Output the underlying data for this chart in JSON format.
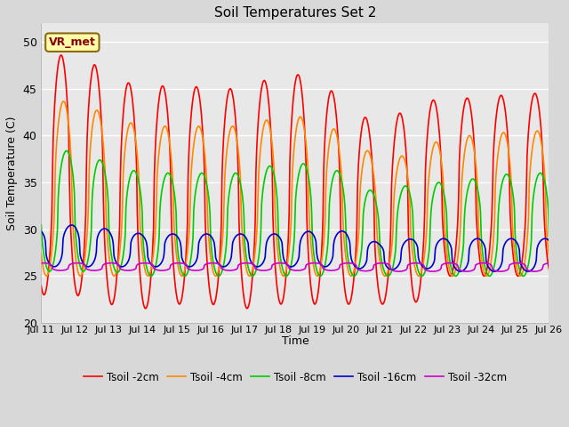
{
  "title": "Soil Temperatures Set 2",
  "xlabel": "Time",
  "ylabel": "Soil Temperature (C)",
  "ylim": [
    20,
    52
  ],
  "yticks": [
    20,
    25,
    30,
    35,
    40,
    45,
    50
  ],
  "xtick_labels": [
    "Jul 11",
    "Jul 12",
    "Jul 13",
    "Jul 14",
    "Jul 15",
    "Jul 16",
    "Jul 17",
    "Jul 18",
    "Jul 19",
    "Jul 20",
    "Jul 21",
    "Jul 22",
    "Jul 23",
    "Jul 24",
    "Jul 25",
    "Jul 26"
  ],
  "outer_bg": "#d8d8d8",
  "plot_bg_color": "#e8e8e8",
  "grid_color": "#ffffff",
  "annotation_text": "VR_met",
  "annotation_bg": "#ffffaa",
  "annotation_border": "#8B6914",
  "series_labels": [
    "Tsoil -2cm",
    "Tsoil -4cm",
    "Tsoil -8cm",
    "Tsoil -16cm",
    "Tsoil -32cm"
  ],
  "series_colors": [
    "#ff0000",
    "#ff8800",
    "#00cc00",
    "#0000cc",
    "#cc00cc"
  ],
  "phase_shifts": [
    0.0,
    0.07,
    0.16,
    0.3,
    0.48
  ],
  "peaks_all": [
    [
      48.0,
      49.0,
      46.5,
      45.0,
      45.5,
      45.0,
      45.0,
      46.5,
      46.5,
      43.5,
      40.8,
      43.5,
      44.0,
      44.0,
      44.5,
      44.5
    ],
    [
      43.0,
      44.0,
      42.0,
      41.0,
      41.0,
      41.0,
      41.0,
      42.0,
      42.0,
      40.0,
      37.5,
      38.0,
      40.0,
      40.0,
      40.5,
      40.5
    ],
    [
      38.0,
      38.5,
      37.0,
      36.0,
      36.0,
      36.0,
      36.0,
      37.0,
      37.0,
      36.0,
      33.5,
      35.0,
      35.0,
      35.5,
      36.0,
      36.0
    ],
    [
      30.0,
      30.5,
      30.0,
      29.5,
      29.5,
      29.5,
      29.5,
      29.5,
      29.8,
      29.8,
      28.5,
      29.0,
      29.0,
      29.0,
      29.0,
      29.0
    ],
    [
      26.4,
      26.4,
      26.4,
      26.4,
      26.4,
      26.4,
      26.4,
      26.4,
      26.4,
      26.4,
      26.4,
      26.4,
      26.4,
      26.4,
      26.4,
      26.4
    ]
  ],
  "troughs_all": [
    [
      23.0,
      23.0,
      22.0,
      21.5,
      22.0,
      22.0,
      21.5,
      22.0,
      22.0,
      22.0,
      22.0,
      22.0,
      25.0,
      25.0,
      25.0,
      25.0
    ],
    [
      25.0,
      25.0,
      25.0,
      25.0,
      25.0,
      25.0,
      25.0,
      25.0,
      25.0,
      25.0,
      25.0,
      25.0,
      25.0,
      25.0,
      25.0,
      25.0
    ],
    [
      25.5,
      25.5,
      25.5,
      25.0,
      25.0,
      25.0,
      25.0,
      25.0,
      25.0,
      25.0,
      25.0,
      25.0,
      25.0,
      25.0,
      25.0,
      25.0
    ],
    [
      26.0,
      26.0,
      26.0,
      26.0,
      26.0,
      26.0,
      26.0,
      26.0,
      26.0,
      26.0,
      25.5,
      26.0,
      25.5,
      25.5,
      25.5,
      25.5
    ],
    [
      25.6,
      25.6,
      25.6,
      25.6,
      25.6,
      25.6,
      25.6,
      25.6,
      25.6,
      25.6,
      25.5,
      25.5,
      25.5,
      25.5,
      25.5,
      25.5
    ]
  ]
}
